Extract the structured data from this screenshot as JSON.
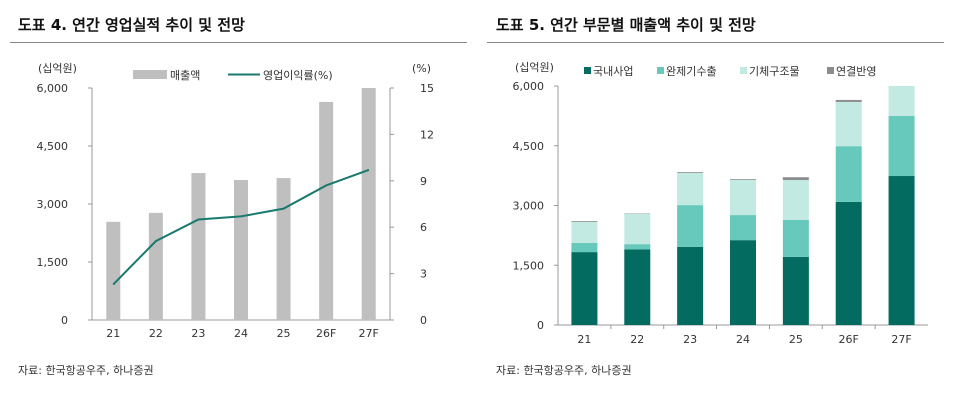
{
  "chart_data": [
    {
      "type": "bar+line",
      "title": "도표 4. 연간 영업실적 추이 및 전망",
      "categories": [
        "21",
        "22",
        "23",
        "24",
        "25",
        "26F",
        "27F"
      ],
      "ylabel": "(십억원)",
      "y2label": "(%)",
      "ylim": [
        0,
        6000
      ],
      "yticks": [
        "0",
        "1,500",
        "3,000",
        "4,500",
        "6,000"
      ],
      "y2lim": [
        0,
        15
      ],
      "y2ticks": [
        "0",
        "3",
        "6",
        "9",
        "12",
        "15"
      ],
      "series": [
        {
          "name": "매출액",
          "type": "bar",
          "color": "#bfbfbf",
          "values": [
            2540,
            2770,
            3800,
            3620,
            3670,
            5640,
            6000
          ]
        },
        {
          "name": "영업이익률(%)",
          "type": "line",
          "axis": "right",
          "color": "#187a6e",
          "values": [
            2.3,
            5.1,
            6.5,
            6.7,
            7.2,
            8.7,
            9.7
          ]
        }
      ],
      "source": "자료: 한국항공우주, 하나증권"
    },
    {
      "type": "stacked-bar",
      "title": "도표 5. 연간 부문별 매출액 추이 및 전망",
      "categories": [
        "21",
        "22",
        "23",
        "24",
        "25",
        "26F",
        "27F"
      ],
      "ylabel": "(십억원)",
      "ylim": [
        0,
        6000
      ],
      "yticks": [
        "0",
        "1,500",
        "3,000",
        "4,500",
        "6,000"
      ],
      "series": [
        {
          "name": "국내사업",
          "color": "#036b60",
          "values": [
            1830,
            1900,
            1960,
            2130,
            1710,
            3090,
            3740
          ]
        },
        {
          "name": "완제기수출",
          "color": "#66c9bb",
          "values": [
            230,
            130,
            1050,
            630,
            930,
            1400,
            1510
          ]
        },
        {
          "name": "기체구조물",
          "color": "#c3e9e3",
          "values": [
            530,
            760,
            810,
            880,
            1000,
            1110,
            750
          ]
        },
        {
          "name": "연결반영",
          "color": "#8c8c8c",
          "values": [
            20,
            10,
            20,
            20,
            70,
            50,
            0
          ]
        }
      ],
      "source": "자료: 한국항공우주, 하나증권"
    }
  ]
}
